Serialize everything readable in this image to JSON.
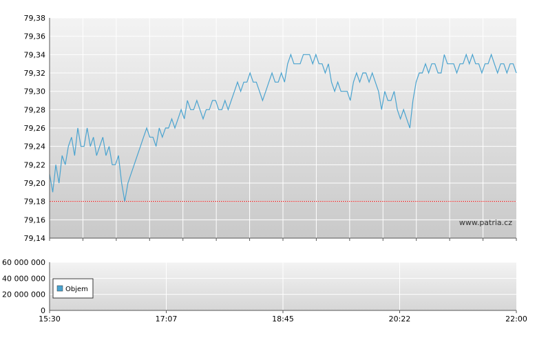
{
  "chart_data": [
    {
      "type": "line",
      "ylim": [
        79.14,
        79.38
      ],
      "y_ticks": [
        "79,38",
        "79,36",
        "79,34",
        "79,32",
        "79,30",
        "79,28",
        "79,26",
        "79,24",
        "79,22",
        "79,20",
        "79,18",
        "79,16",
        "79,14"
      ],
      "reference_line": {
        "y": 79.18,
        "color": "#e03030"
      },
      "watermark": "www.patria.cz",
      "series": [
        {
          "color": "#4aa3cf",
          "points": [
            [
              0,
              79.21
            ],
            [
              1,
              79.19
            ],
            [
              2,
              79.22
            ],
            [
              3,
              79.2
            ],
            [
              4,
              79.23
            ],
            [
              5,
              79.22
            ],
            [
              6,
              79.24
            ],
            [
              7,
              79.25
            ],
            [
              8,
              79.23
            ],
            [
              9,
              79.26
            ],
            [
              10,
              79.24
            ],
            [
              11,
              79.24
            ],
            [
              12,
              79.26
            ],
            [
              13,
              79.24
            ],
            [
              14,
              79.25
            ],
            [
              15,
              79.23
            ],
            [
              16,
              79.24
            ],
            [
              17,
              79.25
            ],
            [
              18,
              79.23
            ],
            [
              19,
              79.24
            ],
            [
              20,
              79.22
            ],
            [
              21,
              79.22
            ],
            [
              22,
              79.23
            ],
            [
              23,
              79.2
            ],
            [
              24,
              79.18
            ],
            [
              25,
              79.2
            ],
            [
              26,
              79.21
            ],
            [
              27,
              79.22
            ],
            [
              28,
              79.23
            ],
            [
              29,
              79.24
            ],
            [
              30,
              79.25
            ],
            [
              31,
              79.26
            ],
            [
              32,
              79.25
            ],
            [
              33,
              79.25
            ],
            [
              34,
              79.24
            ],
            [
              35,
              79.26
            ],
            [
              36,
              79.25
            ],
            [
              37,
              79.26
            ],
            [
              38,
              79.26
            ],
            [
              39,
              79.27
            ],
            [
              40,
              79.26
            ],
            [
              41,
              79.27
            ],
            [
              42,
              79.28
            ],
            [
              43,
              79.27
            ],
            [
              44,
              79.29
            ],
            [
              45,
              79.28
            ],
            [
              46,
              79.28
            ],
            [
              47,
              79.29
            ],
            [
              48,
              79.28
            ],
            [
              49,
              79.27
            ],
            [
              50,
              79.28
            ],
            [
              51,
              79.28
            ],
            [
              52,
              79.29
            ],
            [
              53,
              79.29
            ],
            [
              54,
              79.28
            ],
            [
              55,
              79.28
            ],
            [
              56,
              79.29
            ],
            [
              57,
              79.28
            ],
            [
              58,
              79.29
            ],
            [
              59,
              79.3
            ],
            [
              60,
              79.31
            ],
            [
              61,
              79.3
            ],
            [
              62,
              79.31
            ],
            [
              63,
              79.31
            ],
            [
              64,
              79.32
            ],
            [
              65,
              79.31
            ],
            [
              66,
              79.31
            ],
            [
              67,
              79.3
            ],
            [
              68,
              79.29
            ],
            [
              69,
              79.3
            ],
            [
              70,
              79.31
            ],
            [
              71,
              79.32
            ],
            [
              72,
              79.31
            ],
            [
              73,
              79.31
            ],
            [
              74,
              79.32
            ],
            [
              75,
              79.31
            ],
            [
              76,
              79.33
            ],
            [
              77,
              79.34
            ],
            [
              78,
              79.33
            ],
            [
              79,
              79.33
            ],
            [
              80,
              79.33
            ],
            [
              81,
              79.34
            ],
            [
              82,
              79.34
            ],
            [
              83,
              79.34
            ],
            [
              84,
              79.33
            ],
            [
              85,
              79.34
            ],
            [
              86,
              79.33
            ],
            [
              87,
              79.33
            ],
            [
              88,
              79.32
            ],
            [
              89,
              79.33
            ],
            [
              90,
              79.31
            ],
            [
              91,
              79.3
            ],
            [
              92,
              79.31
            ],
            [
              93,
              79.3
            ],
            [
              94,
              79.3
            ],
            [
              95,
              79.3
            ],
            [
              96,
              79.29
            ],
            [
              97,
              79.31
            ],
            [
              98,
              79.32
            ],
            [
              99,
              79.31
            ],
            [
              100,
              79.32
            ],
            [
              101,
              79.32
            ],
            [
              102,
              79.31
            ],
            [
              103,
              79.32
            ],
            [
              104,
              79.31
            ],
            [
              105,
              79.3
            ],
            [
              106,
              79.28
            ],
            [
              107,
              79.3
            ],
            [
              108,
              79.29
            ],
            [
              109,
              79.29
            ],
            [
              110,
              79.3
            ],
            [
              111,
              79.28
            ],
            [
              112,
              79.27
            ],
            [
              113,
              79.28
            ],
            [
              114,
              79.27
            ],
            [
              115,
              79.26
            ],
            [
              116,
              79.29
            ],
            [
              117,
              79.31
            ],
            [
              118,
              79.32
            ],
            [
              119,
              79.32
            ],
            [
              120,
              79.33
            ],
            [
              121,
              79.32
            ],
            [
              122,
              79.33
            ],
            [
              123,
              79.33
            ],
            [
              124,
              79.32
            ],
            [
              125,
              79.32
            ],
            [
              126,
              79.34
            ],
            [
              127,
              79.33
            ],
            [
              128,
              79.33
            ],
            [
              129,
              79.33
            ],
            [
              130,
              79.32
            ],
            [
              131,
              79.33
            ],
            [
              132,
              79.33
            ],
            [
              133,
              79.34
            ],
            [
              134,
              79.33
            ],
            [
              135,
              79.34
            ],
            [
              136,
              79.33
            ],
            [
              137,
              79.33
            ],
            [
              138,
              79.32
            ],
            [
              139,
              79.33
            ],
            [
              140,
              79.33
            ],
            [
              141,
              79.34
            ],
            [
              142,
              79.33
            ],
            [
              143,
              79.32
            ],
            [
              144,
              79.33
            ],
            [
              145,
              79.33
            ],
            [
              146,
              79.32
            ],
            [
              147,
              79.33
            ],
            [
              148,
              79.33
            ],
            [
              149,
              79.32
            ]
          ]
        }
      ]
    },
    {
      "type": "area",
      "ylim": [
        0,
        60000000
      ],
      "y_ticks": [
        "60 000 000",
        "40 000 000",
        "20 000 000",
        "0"
      ],
      "x_ticks": [
        "15:30",
        "17:07",
        "18:45",
        "20:22",
        "22:00"
      ],
      "legend": {
        "label": "Objem",
        "color": "#4aa3cf",
        "position": "left"
      },
      "series": [
        {
          "name": "Objem",
          "color": "#4aa3cf",
          "values": []
        }
      ]
    }
  ]
}
